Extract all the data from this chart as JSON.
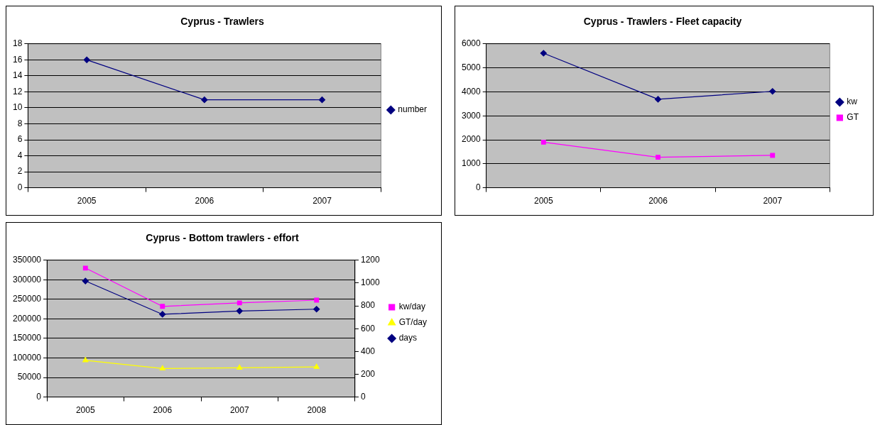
{
  "chart_data": [
    {
      "type": "line",
      "title": "Cyprus - Trawlers",
      "categories": [
        "2005",
        "2006",
        "2007"
      ],
      "ylim": [
        0,
        18
      ],
      "yticks": [
        0,
        2,
        4,
        6,
        8,
        10,
        12,
        14,
        16,
        18
      ],
      "grid": "y",
      "legend": "right",
      "series": [
        {
          "name": "number",
          "color": "#000080",
          "marker": "diamond",
          "values": [
            16,
            11,
            11
          ]
        }
      ]
    },
    {
      "type": "line",
      "title": "Cyprus - Trawlers - Fleet capacity",
      "categories": [
        "2005",
        "2006",
        "2007"
      ],
      "ylim": [
        0,
        6000
      ],
      "yticks": [
        0,
        1000,
        2000,
        3000,
        4000,
        5000,
        6000
      ],
      "grid": "y",
      "legend": "right",
      "series": [
        {
          "name": "kw",
          "color": "#000080",
          "marker": "diamond",
          "values": [
            5610,
            3690,
            4020
          ]
        },
        {
          "name": "GT",
          "color": "#ff00ff",
          "marker": "square",
          "values": [
            1900,
            1270,
            1350
          ]
        }
      ]
    },
    {
      "type": "line",
      "title": "Cyprus - Bottom trawlers - effort",
      "categories": [
        "2005",
        "2006",
        "2007",
        "2008"
      ],
      "ylim": [
        0,
        350000
      ],
      "yticks": [
        0,
        50000,
        100000,
        150000,
        200000,
        250000,
        300000,
        350000
      ],
      "y2lim": [
        0,
        1200
      ],
      "y2ticks": [
        0,
        200,
        400,
        600,
        800,
        1000,
        1200
      ],
      "grid": "y",
      "legend": "right",
      "series": [
        {
          "name": "kw/day",
          "color": "#ff00ff",
          "marker": "square",
          "values": [
            330000,
            232000,
            241000,
            248000
          ]
        },
        {
          "name": "GT/day",
          "color": "#ffff00",
          "marker": "triangle",
          "values": [
            94000,
            73000,
            75000,
            77000
          ]
        },
        {
          "name": "days",
          "color": "#000080",
          "marker": "diamond",
          "axis": "y2",
          "values": [
            1018,
            726,
            755,
            771
          ]
        }
      ]
    }
  ]
}
